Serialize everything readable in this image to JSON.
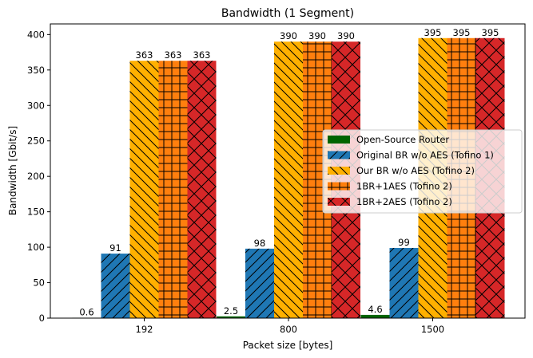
{
  "chart_data": {
    "type": "bar",
    "title": "Bandwidth (1 Segment)",
    "xlabel": "Packet size [bytes]",
    "ylabel": "Bandwidth [Gbit/s]",
    "categories": [
      "192",
      "800",
      "1500"
    ],
    "ylim": [
      0,
      415
    ],
    "yticks": [
      0,
      50,
      100,
      150,
      200,
      250,
      300,
      350,
      400
    ],
    "grid": false,
    "legend_position": "center-right",
    "series": [
      {
        "name": "Open-Source Router",
        "values": [
          0.6,
          2.5,
          4.6
        ],
        "labels": [
          "0.6",
          "2.5",
          "4.6"
        ],
        "color": "#006400",
        "hatch": "none"
      },
      {
        "name": "Original BR w/o AES (Tofino 1)",
        "values": [
          91,
          98,
          99
        ],
        "labels": [
          "91",
          "98",
          "99"
        ],
        "color": "#1f77b4",
        "hatch": "forward-diagonal"
      },
      {
        "name": "Our BR w/o AES (Tofino 2)",
        "values": [
          363,
          390,
          395
        ],
        "labels": [
          "363",
          "390",
          "395"
        ],
        "color": "#ffb000",
        "hatch": "back-diagonal"
      },
      {
        "name": "1BR+1AES (Tofino 2)",
        "values": [
          363,
          390,
          395
        ],
        "labels": [
          "363",
          "390",
          "395"
        ],
        "color": "#ff7f0e",
        "hatch": "grid"
      },
      {
        "name": "1BR+2AES (Tofino 2)",
        "values": [
          363,
          390,
          395
        ],
        "labels": [
          "363",
          "390",
          "395"
        ],
        "color": "#d62728",
        "hatch": "cross"
      }
    ]
  }
}
